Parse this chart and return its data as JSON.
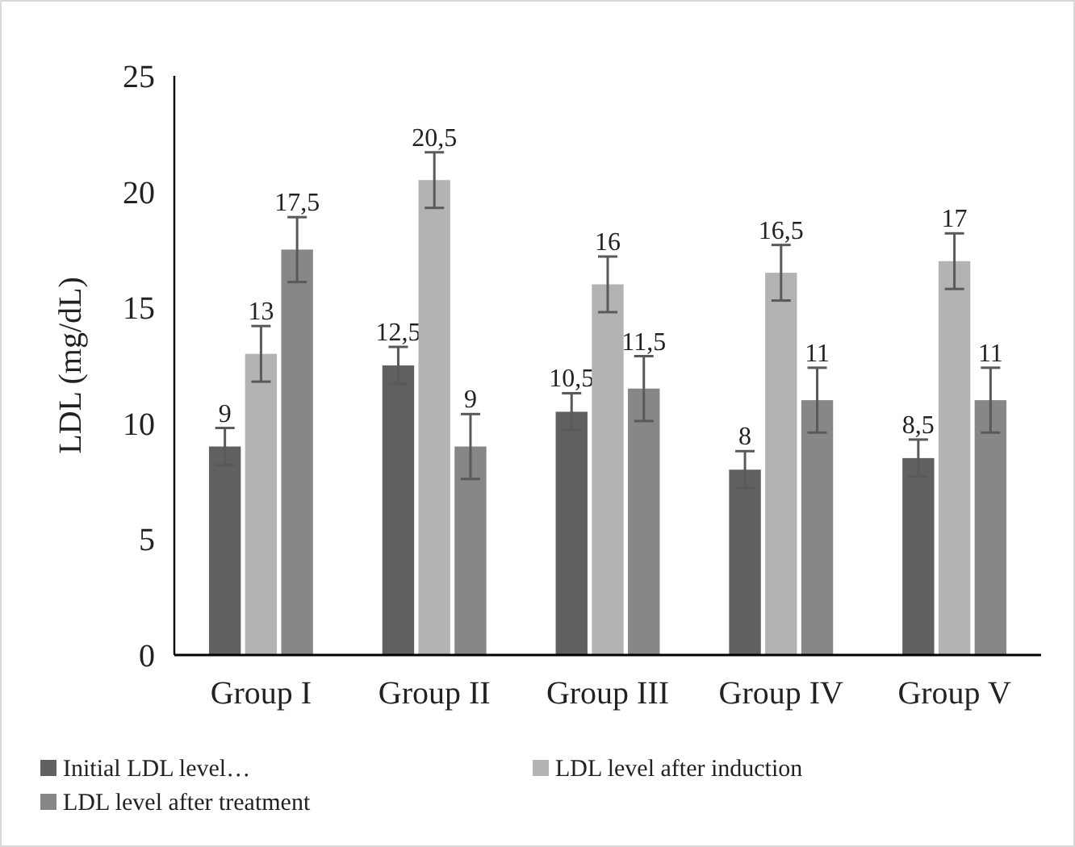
{
  "chart_data": {
    "type": "bar",
    "ylabel": "LDL (mg/dL)",
    "categories": [
      "Group I",
      "Group II",
      "Group III",
      "Group IV",
      "Group V"
    ],
    "series": [
      {
        "name": "Initial LDL level…",
        "color": "#606060",
        "values": [
          9,
          12.5,
          10.5,
          8,
          8.5
        ],
        "errors": [
          0.8,
          0.8,
          0.8,
          0.8,
          0.8
        ],
        "value_labels": [
          "9",
          "12,5",
          "10,5",
          "8",
          "8,5"
        ]
      },
      {
        "name": "LDL level after induction",
        "color": "#b3b3b3",
        "values": [
          13,
          20.5,
          16,
          16.5,
          17
        ],
        "errors": [
          1.2,
          1.2,
          1.2,
          1.2,
          1.2
        ],
        "value_labels": [
          "13",
          "20,5",
          "16",
          "16,5",
          "17"
        ]
      },
      {
        "name": "LDL level after treatment",
        "color": "#878787",
        "values": [
          17.5,
          9,
          11.5,
          11,
          11
        ],
        "errors": [
          1.4,
          1.4,
          1.4,
          1.4,
          1.4
        ],
        "value_labels": [
          "17,5",
          "9",
          "11,5",
          "11",
          "11"
        ]
      }
    ],
    "ylim": [
      0,
      25
    ],
    "yticks": [
      0,
      5,
      10,
      15,
      20,
      25
    ],
    "grid": false,
    "legend": "bottom"
  }
}
